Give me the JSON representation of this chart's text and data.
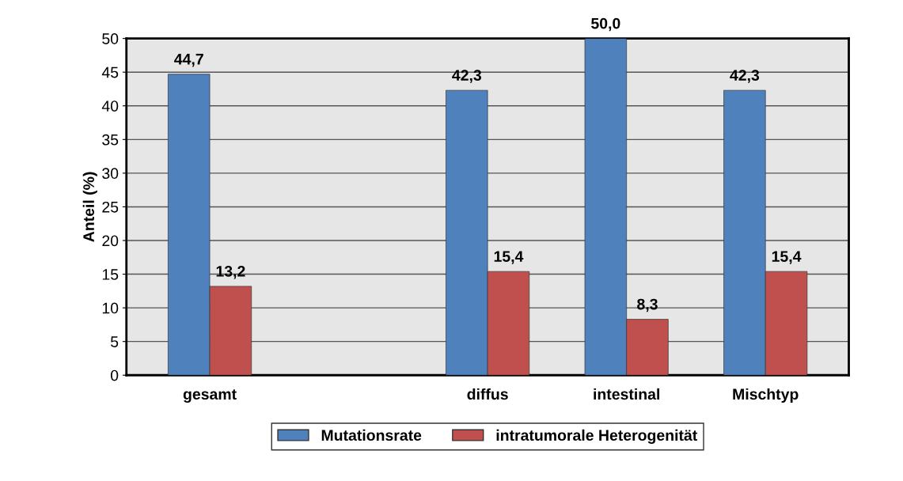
{
  "chart_data": {
    "type": "bar",
    "ylabel": "Anteil (%)",
    "categories": [
      "gesamt",
      null,
      "diffus",
      "intestinal",
      "Mischtyp"
    ],
    "series": [
      {
        "name": "Mutationsrate",
        "color": "#4f81bd",
        "values": [
          44.7,
          null,
          42.3,
          50.0,
          42.3
        ],
        "value_labels": [
          "44,7",
          null,
          "42,3",
          "50,0",
          "42,3"
        ]
      },
      {
        "name": "intratumorale Heterogenität",
        "color": "#c0504d",
        "values": [
          13.2,
          null,
          15.4,
          8.3,
          15.4
        ],
        "value_labels": [
          "13,2",
          null,
          "15,4",
          "8,3",
          "15,4"
        ]
      }
    ],
    "ylim": [
      0,
      50
    ],
    "yticks": [
      0,
      5,
      10,
      15,
      20,
      25,
      30,
      35,
      40,
      45,
      50
    ],
    "grid": "y",
    "legend": "bottom"
  }
}
